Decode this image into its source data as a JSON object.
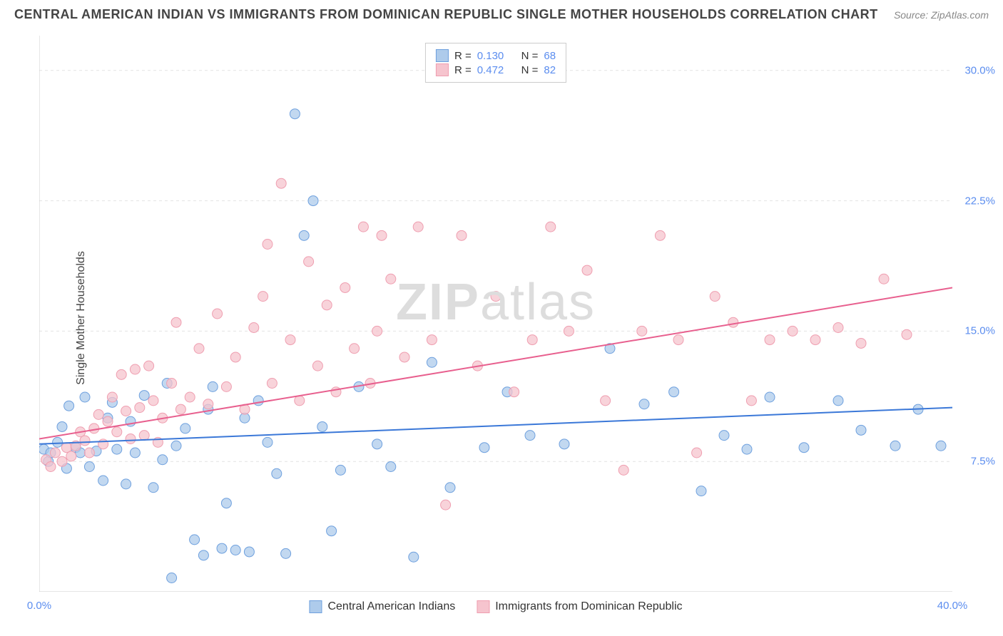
{
  "header": {
    "title": "CENTRAL AMERICAN INDIAN VS IMMIGRANTS FROM DOMINICAN REPUBLIC SINGLE MOTHER HOUSEHOLDS CORRELATION CHART",
    "source": "Source: ZipAtlas.com"
  },
  "watermark": {
    "zip": "ZIP",
    "atlas": "atlas"
  },
  "chart": {
    "type": "scatter",
    "y_label": "Single Mother Households",
    "background_color": "#ffffff",
    "grid_color": "#e3e3e3",
    "axis_color": "#cccccc",
    "tick_label_color": "#5b8def",
    "x_axis": {
      "min": 0,
      "max": 40,
      "label_min": "0.0%",
      "label_max": "40.0%",
      "minor_ticks": [
        4,
        8,
        12,
        16,
        20,
        24,
        28,
        32,
        36
      ]
    },
    "y_axis": {
      "min": 0,
      "max": 32,
      "labels": [
        {
          "v": 7.5,
          "text": "7.5%"
        },
        {
          "v": 15.0,
          "text": "15.0%"
        },
        {
          "v": 22.5,
          "text": "22.5%"
        },
        {
          "v": 30.0,
          "text": "30.0%"
        }
      ]
    },
    "series": [
      {
        "name": "Central American Indians",
        "color_fill": "#aecbeb",
        "color_stroke": "#6ea0de",
        "marker_radius": 7,
        "marker_opacity": 0.75,
        "trend": {
          "color": "#3b78d8",
          "width": 2,
          "y_at_xmin": 8.5,
          "y_at_xmax": 10.6
        },
        "stats": {
          "r_label": "R =",
          "r": "0.130",
          "n_label": "N =",
          "n": "68"
        },
        "points": [
          [
            0.2,
            8.2
          ],
          [
            0.4,
            7.5
          ],
          [
            0.5,
            8.0
          ],
          [
            0.8,
            8.6
          ],
          [
            1.0,
            9.5
          ],
          [
            1.2,
            7.1
          ],
          [
            1.3,
            10.7
          ],
          [
            1.6,
            8.3
          ],
          [
            1.8,
            8.0
          ],
          [
            2.0,
            11.2
          ],
          [
            2.2,
            7.2
          ],
          [
            2.5,
            8.1
          ],
          [
            2.8,
            6.4
          ],
          [
            3.0,
            10.0
          ],
          [
            3.2,
            10.9
          ],
          [
            3.4,
            8.2
          ],
          [
            3.8,
            6.2
          ],
          [
            4.0,
            9.8
          ],
          [
            4.2,
            8.0
          ],
          [
            4.6,
            11.3
          ],
          [
            5.0,
            6.0
          ],
          [
            5.4,
            7.6
          ],
          [
            5.6,
            12.0
          ],
          [
            6.0,
            8.4
          ],
          [
            6.4,
            9.4
          ],
          [
            6.8,
            3.0
          ],
          [
            7.2,
            2.1
          ],
          [
            7.4,
            10.5
          ],
          [
            7.6,
            11.8
          ],
          [
            8.0,
            2.5
          ],
          [
            8.2,
            5.1
          ],
          [
            8.6,
            2.4
          ],
          [
            9.0,
            10.0
          ],
          [
            9.2,
            2.3
          ],
          [
            9.6,
            11.0
          ],
          [
            10.0,
            8.6
          ],
          [
            10.4,
            6.8
          ],
          [
            10.8,
            2.2
          ],
          [
            11.2,
            27.5
          ],
          [
            11.6,
            20.5
          ],
          [
            12.0,
            22.5
          ],
          [
            12.4,
            9.5
          ],
          [
            12.8,
            3.5
          ],
          [
            13.2,
            7.0
          ],
          [
            14.0,
            11.8
          ],
          [
            14.8,
            8.5
          ],
          [
            15.4,
            7.2
          ],
          [
            16.4,
            2.0
          ],
          [
            17.2,
            13.2
          ],
          [
            18.0,
            6.0
          ],
          [
            19.5,
            8.3
          ],
          [
            20.5,
            11.5
          ],
          [
            21.5,
            9.0
          ],
          [
            23.0,
            8.5
          ],
          [
            25.0,
            14.0
          ],
          [
            26.5,
            10.8
          ],
          [
            27.8,
            11.5
          ],
          [
            29.0,
            5.8
          ],
          [
            30.0,
            9.0
          ],
          [
            31.0,
            8.2
          ],
          [
            32.0,
            11.2
          ],
          [
            33.5,
            8.3
          ],
          [
            35.0,
            11.0
          ],
          [
            36.0,
            9.3
          ],
          [
            37.5,
            8.4
          ],
          [
            38.5,
            10.5
          ],
          [
            39.5,
            8.4
          ],
          [
            5.8,
            0.8
          ]
        ]
      },
      {
        "name": "Immigrants from Dominican Republic",
        "color_fill": "#f6c4ce",
        "color_stroke": "#ef9eb0",
        "marker_radius": 7,
        "marker_opacity": 0.75,
        "trend": {
          "color": "#e85f8e",
          "width": 2,
          "y_at_xmin": 8.8,
          "y_at_xmax": 17.5
        },
        "stats": {
          "r_label": "R =",
          "r": "0.472",
          "n_label": "N =",
          "n": "82"
        },
        "points": [
          [
            0.3,
            7.6
          ],
          [
            0.5,
            7.2
          ],
          [
            0.7,
            8.0
          ],
          [
            1.0,
            7.5
          ],
          [
            1.2,
            8.3
          ],
          [
            1.4,
            7.8
          ],
          [
            1.6,
            8.4
          ],
          [
            1.8,
            9.2
          ],
          [
            2.0,
            8.7
          ],
          [
            2.2,
            8.0
          ],
          [
            2.4,
            9.4
          ],
          [
            2.6,
            10.2
          ],
          [
            2.8,
            8.5
          ],
          [
            3.0,
            9.8
          ],
          [
            3.2,
            11.2
          ],
          [
            3.4,
            9.2
          ],
          [
            3.6,
            12.5
          ],
          [
            3.8,
            10.4
          ],
          [
            4.0,
            8.8
          ],
          [
            4.2,
            12.8
          ],
          [
            4.4,
            10.6
          ],
          [
            4.6,
            9.0
          ],
          [
            4.8,
            13.0
          ],
          [
            5.0,
            11.0
          ],
          [
            5.2,
            8.6
          ],
          [
            5.4,
            10.0
          ],
          [
            5.8,
            12.0
          ],
          [
            6.0,
            15.5
          ],
          [
            6.2,
            10.5
          ],
          [
            6.6,
            11.2
          ],
          [
            7.0,
            14.0
          ],
          [
            7.4,
            10.8
          ],
          [
            7.8,
            16.0
          ],
          [
            8.2,
            11.8
          ],
          [
            8.6,
            13.5
          ],
          [
            9.0,
            10.5
          ],
          [
            9.4,
            15.2
          ],
          [
            9.8,
            17.0
          ],
          [
            10.2,
            12.0
          ],
          [
            10.6,
            23.5
          ],
          [
            11.0,
            14.5
          ],
          [
            11.4,
            11.0
          ],
          [
            11.8,
            19.0
          ],
          [
            12.2,
            13.0
          ],
          [
            12.6,
            16.5
          ],
          [
            13.0,
            11.5
          ],
          [
            13.4,
            17.5
          ],
          [
            13.8,
            14.0
          ],
          [
            14.2,
            21.0
          ],
          [
            14.8,
            15.0
          ],
          [
            15.4,
            18.0
          ],
          [
            16.0,
            13.5
          ],
          [
            16.6,
            21.0
          ],
          [
            17.2,
            14.5
          ],
          [
            17.8,
            5.0
          ],
          [
            18.5,
            20.5
          ],
          [
            19.2,
            13.0
          ],
          [
            20.0,
            17.0
          ],
          [
            20.8,
            11.5
          ],
          [
            21.6,
            14.5
          ],
          [
            22.4,
            21.0
          ],
          [
            23.2,
            15.0
          ],
          [
            24.0,
            18.5
          ],
          [
            24.8,
            11.0
          ],
          [
            25.6,
            7.0
          ],
          [
            26.4,
            15.0
          ],
          [
            27.2,
            20.5
          ],
          [
            28.0,
            14.5
          ],
          [
            28.8,
            8.0
          ],
          [
            29.6,
            17.0
          ],
          [
            30.4,
            15.5
          ],
          [
            31.2,
            11.0
          ],
          [
            32.0,
            14.5
          ],
          [
            33.0,
            15.0
          ],
          [
            34.0,
            14.5
          ],
          [
            35.0,
            15.2
          ],
          [
            36.0,
            14.3
          ],
          [
            37.0,
            18.0
          ],
          [
            38.0,
            14.8
          ],
          [
            10.0,
            20.0
          ],
          [
            14.5,
            12.0
          ],
          [
            15.0,
            20.5
          ]
        ]
      }
    ]
  }
}
